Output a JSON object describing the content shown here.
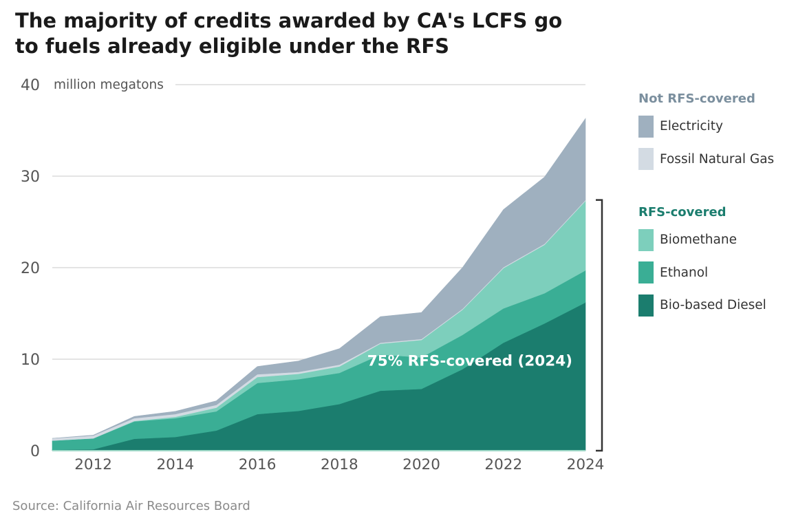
{
  "title_lines": [
    "The majority of credits awarded by CA's LCFS go",
    "to fuels already eligible under the RFS"
  ],
  "source": "Source: California Air Resources Board",
  "colors": {
    "bio_based_diesel": "#1b7d6e",
    "ethanol": "#3aae95",
    "biomethane": "#7dcfbc",
    "fossil_natural_gas": "#d3dbe3",
    "electricity": "#9fb0bf",
    "not_rfs_title": "#7b8f9e",
    "rfs_title": "#1b7d6e"
  },
  "legend": {
    "not_rfs": {
      "title": "Not RFS-covered",
      "items": [
        {
          "label": "Electricity",
          "color": "#9fb0bf"
        },
        {
          "label": "Fossil Natural Gas",
          "color": "#d3dbe3"
        }
      ]
    },
    "rfs": {
      "title": "RFS-covered",
      "items": [
        {
          "label": "Biomethane",
          "color": "#7dcfbc"
        },
        {
          "label": "Ethanol",
          "color": "#3aae95"
        },
        {
          "label": "Bio-based Diesel",
          "color": "#1b7d6e"
        }
      ]
    }
  },
  "chart_data": {
    "type": "area",
    "stacked": true,
    "title": "The majority of credits awarded by CA's LCFS go to fuels already eligible under the RFS",
    "ylabel": "million megatons",
    "xlabel": "",
    "x": [
      2011,
      2012,
      2013,
      2014,
      2015,
      2016,
      2017,
      2018,
      2019,
      2020,
      2021,
      2022,
      2023,
      2024
    ],
    "xlim": [
      2011,
      2024
    ],
    "xticks": [
      2012,
      2014,
      2016,
      2018,
      2020,
      2022,
      2024
    ],
    "ylim": [
      0,
      40
    ],
    "yticks": [
      0,
      10,
      20,
      30,
      40
    ],
    "grid": true,
    "series": [
      {
        "name": "Bio-based Diesel",
        "key": "bio_based_diesel",
        "values": [
          0.1,
          0.15,
          1.3,
          1.5,
          2.2,
          4.0,
          4.35,
          5.1,
          6.55,
          6.75,
          8.9,
          11.8,
          13.9,
          16.2
        ]
      },
      {
        "name": "Ethanol",
        "key": "ethanol",
        "values": [
          1.0,
          1.2,
          1.9,
          2.05,
          2.1,
          3.4,
          3.45,
          3.4,
          3.95,
          3.45,
          3.75,
          3.75,
          3.3,
          3.5
        ]
      },
      {
        "name": "Biomethane",
        "key": "biomethane",
        "values": [
          0.0,
          0.0,
          0.05,
          0.15,
          0.4,
          0.65,
          0.6,
          0.7,
          1.2,
          1.9,
          2.75,
          4.4,
          5.3,
          7.6
        ]
      },
      {
        "name": "Fossil Natural Gas",
        "key": "fossil_natural_gas",
        "values": [
          0.25,
          0.3,
          0.3,
          0.3,
          0.3,
          0.3,
          0.2,
          0.2,
          0.1,
          0.1,
          0.1,
          0.1,
          0.1,
          0.1
        ]
      },
      {
        "name": "Electricity",
        "key": "electricity",
        "values": [
          0.0,
          0.05,
          0.2,
          0.3,
          0.45,
          0.85,
          1.2,
          1.75,
          2.85,
          2.9,
          4.5,
          6.3,
          7.3,
          8.9
        ]
      }
    ],
    "annotation": {
      "text": "75% RFS-covered (2024)",
      "x": 2024,
      "y": 9.8,
      "bracket_range": [
        0,
        27.4
      ]
    }
  }
}
